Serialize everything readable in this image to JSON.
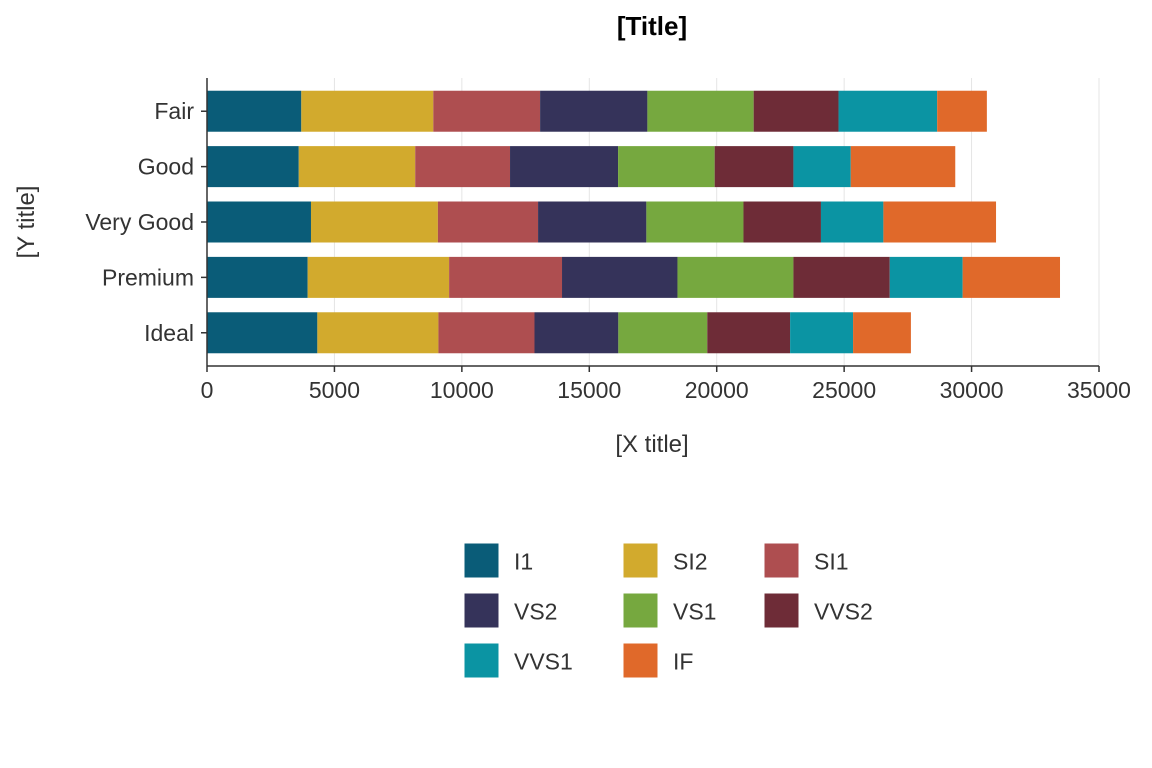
{
  "chart_data": {
    "type": "bar",
    "orientation": "horizontal",
    "stacked": true,
    "title": "[Title]",
    "xlabel": "[X title]",
    "ylabel": "[Y title]",
    "xlim": [
      0,
      35000
    ],
    "xticks": [
      0,
      5000,
      10000,
      15000,
      20000,
      25000,
      30000,
      35000
    ],
    "grid": "vertical-major",
    "legend_position": "bottom",
    "categories": [
      "Ideal",
      "Premium",
      "Very Good",
      "Good",
      "Fair"
    ],
    "series": [
      {
        "name": "I1",
        "color": "#0a5c78",
        "values": [
          4330,
          3950,
          4080,
          3600,
          3700
        ]
      },
      {
        "name": "SI2",
        "color": "#d2aa2d",
        "values": [
          4750,
          5550,
          4980,
          4570,
          5180
        ]
      },
      {
        "name": "SI1",
        "color": "#ae4e50",
        "values": [
          3770,
          4430,
          3930,
          3720,
          4190
        ]
      },
      {
        "name": "VS2",
        "color": "#35335a",
        "values": [
          3290,
          4530,
          4250,
          4240,
          4210
        ]
      },
      {
        "name": "VS1",
        "color": "#76a83f",
        "values": [
          3490,
          4550,
          3810,
          3790,
          4170
        ]
      },
      {
        "name": "VVS2",
        "color": "#6e2c37",
        "values": [
          3250,
          3780,
          3040,
          3090,
          3330
        ]
      },
      {
        "name": "VVS1",
        "color": "#0b94a3",
        "values": [
          2470,
          2860,
          2450,
          2250,
          3870
        ]
      },
      {
        "name": "IF",
        "color": "#e0692a",
        "values": [
          2270,
          3820,
          4420,
          4100,
          1950
        ]
      }
    ]
  }
}
